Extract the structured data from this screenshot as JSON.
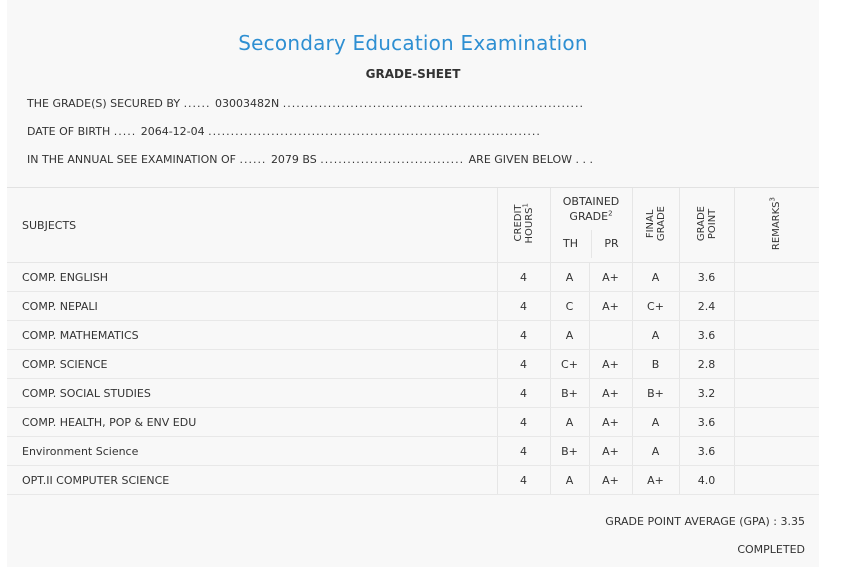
{
  "header": {
    "exam_title": "Secondary Education Examination",
    "sheet_title": "GRADE-SHEET"
  },
  "info": {
    "secured_label": "THE GRADE(S) SECURED BY",
    "secured_value": "03003482N",
    "dob_label": "DATE OF BIRTH",
    "dob_value": "2064-12-04",
    "exam_label": "IN THE ANNUAL SEE EXAMINATION OF",
    "exam_value": "2079 BS",
    "exam_suffix": "ARE GIVEN BELOW . . ."
  },
  "table": {
    "subjects_header": "SUBJECTS",
    "credit_header_1": "CREDIT",
    "credit_header_2": "HOURS",
    "credit_sup": "1",
    "obtained_header_1": "OBTAINED",
    "obtained_header_2": "GRADE",
    "obtained_sup": "2",
    "th_header": "TH",
    "pr_header": "PR",
    "final_header_1": "FINAL",
    "final_header_2": "GRADE",
    "point_header_1": "GRADE",
    "point_header_2": "POINT",
    "remarks_header": "REMARKS",
    "remarks_sup": "3",
    "rows": [
      {
        "subject": "COMP. ENGLISH",
        "credit": "4",
        "th": "A",
        "pr": "A+",
        "final": "A",
        "point": "3.6",
        "remarks": ""
      },
      {
        "subject": "COMP. NEPALI",
        "credit": "4",
        "th": "C",
        "pr": "A+",
        "final": "C+",
        "point": "2.4",
        "remarks": ""
      },
      {
        "subject": "COMP. MATHEMATICS",
        "credit": "4",
        "th": "A",
        "pr": "",
        "final": "A",
        "point": "3.6",
        "remarks": ""
      },
      {
        "subject": "COMP. SCIENCE",
        "credit": "4",
        "th": "C+",
        "pr": "A+",
        "final": "B",
        "point": "2.8",
        "remarks": ""
      },
      {
        "subject": "COMP. SOCIAL STUDIES",
        "credit": "4",
        "th": "B+",
        "pr": "A+",
        "final": "B+",
        "point": "3.2",
        "remarks": ""
      },
      {
        "subject": "COMP. HEALTH, POP & ENV EDU",
        "credit": "4",
        "th": "A",
        "pr": "A+",
        "final": "A",
        "point": "3.6",
        "remarks": ""
      },
      {
        "subject": "Environment Science",
        "credit": "4",
        "th": "B+",
        "pr": "A+",
        "final": "A",
        "point": "3.6",
        "remarks": ""
      },
      {
        "subject": "OPT.II COMPUTER SCIENCE",
        "credit": "4",
        "th": "A",
        "pr": "A+",
        "final": "A+",
        "point": "4.0",
        "remarks": ""
      }
    ]
  },
  "summary": {
    "gpa_text": "GRADE POINT AVERAGE (GPA) : 3.35",
    "status": "COMPLETED"
  },
  "colors": {
    "title": "#2e8fd2",
    "panel": "#f8f8f8"
  }
}
